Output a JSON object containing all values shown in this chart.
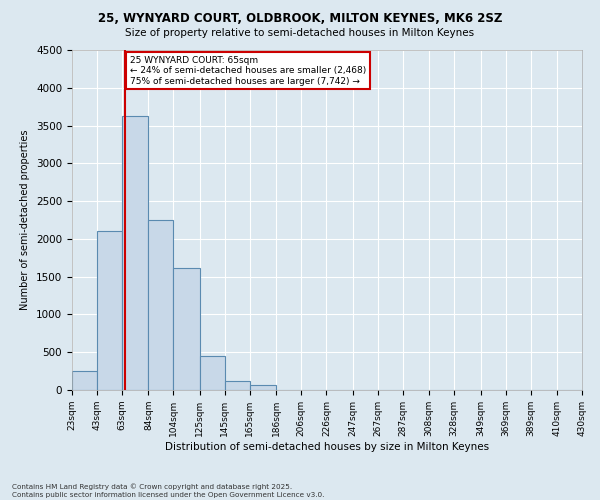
{
  "title_line1": "25, WYNYARD COURT, OLDBROOK, MILTON KEYNES, MK6 2SZ",
  "title_line2": "Size of property relative to semi-detached houses in Milton Keynes",
  "xlabel": "Distribution of semi-detached houses by size in Milton Keynes",
  "ylabel": "Number of semi-detached properties",
  "footnote": "Contains HM Land Registry data © Crown copyright and database right 2025.\nContains public sector information licensed under the Open Government Licence v3.0.",
  "bins_labels": [
    "23sqm",
    "43sqm",
    "63sqm",
    "84sqm",
    "104sqm",
    "125sqm",
    "145sqm",
    "165sqm",
    "186sqm",
    "206sqm",
    "226sqm",
    "247sqm",
    "267sqm",
    "287sqm",
    "308sqm",
    "328sqm",
    "349sqm",
    "369sqm",
    "389sqm",
    "410sqm",
    "430sqm"
  ],
  "bar_values": [
    250,
    2100,
    3620,
    2250,
    1620,
    450,
    120,
    60,
    0,
    0,
    0,
    0,
    0,
    0,
    0,
    0,
    0,
    0,
    0,
    0
  ],
  "bar_color": "#c8d8e8",
  "bar_edge_color": "#5a8ab0",
  "property_size_sqm": 65,
  "pct_smaller": 24,
  "pct_smaller_count": "2,468",
  "pct_larger": 75,
  "pct_larger_count": "7,742",
  "vline_color": "#cc0000",
  "annotation_box_edgecolor": "#cc0000",
  "ylim": [
    0,
    4500
  ],
  "yticks": [
    0,
    500,
    1000,
    1500,
    2000,
    2500,
    3000,
    3500,
    4000,
    4500
  ],
  "bg_color": "#dce8f0",
  "bin_starts": [
    23,
    43,
    63,
    84,
    104,
    125,
    145,
    165,
    186,
    206,
    226,
    247,
    267,
    287,
    308,
    328,
    349,
    369,
    389,
    410
  ]
}
